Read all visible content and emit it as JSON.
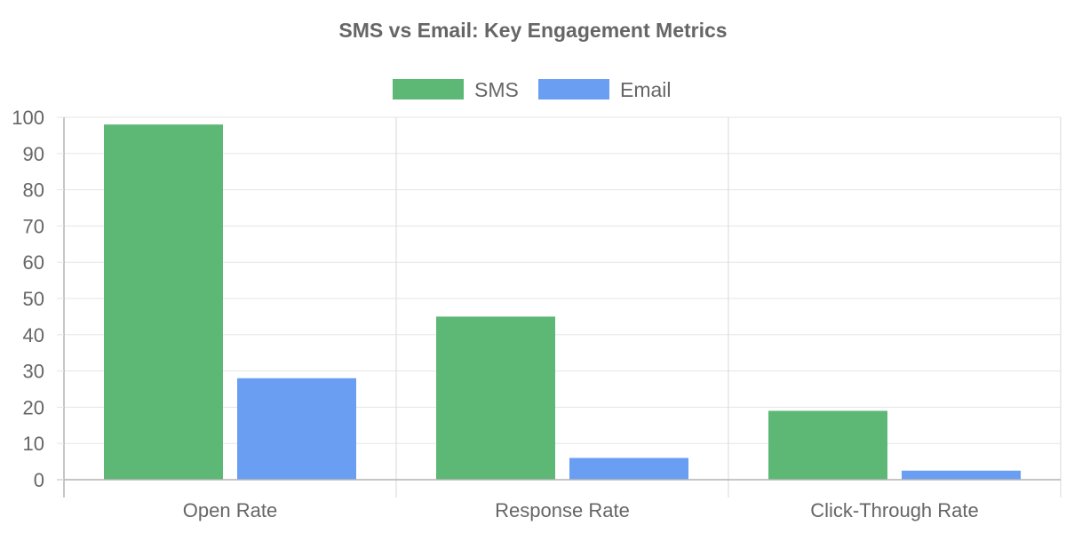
{
  "chart_data": {
    "type": "bar",
    "title": "SMS vs Email: Key Engagement Metrics",
    "categories": [
      "Open Rate",
      "Response Rate",
      "Click-Through Rate"
    ],
    "series": [
      {
        "name": "SMS",
        "values": [
          98,
          45,
          19
        ],
        "color": "#5cb874"
      },
      {
        "name": "Email",
        "values": [
          28,
          6,
          2.5
        ],
        "color": "#6a9ef3"
      }
    ],
    "ylim": [
      0,
      100
    ],
    "yticks": [
      0,
      10,
      20,
      30,
      40,
      50,
      60,
      70,
      80,
      90,
      100
    ],
    "grid": true,
    "legend_position": "top-center"
  }
}
